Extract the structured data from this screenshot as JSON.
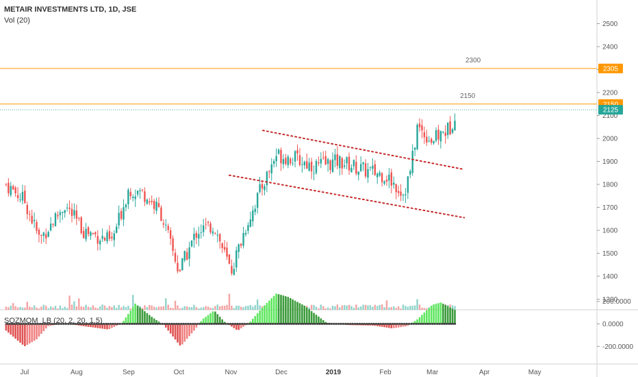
{
  "legend": {
    "title": "METAIR INVESTMENTS LTD, 1D, JSE",
    "volume": "Vol (20)",
    "indicator": "SQZMOM_LB (20, 2, 20, 1.5)"
  },
  "colors": {
    "up": "#26a69a",
    "down": "#ef5350",
    "level": "#ff9800",
    "last_price": "#26a69a",
    "trend": "#c62828",
    "mom_up_strong": "#5ee65e",
    "mom_up_weak": "#3a9a3a",
    "mom_down_strong": "#e05252",
    "mom_down_weak": "#f08080"
  },
  "chart_data": [
    {
      "type": "candlestick",
      "title": "METAIR INVESTMENTS LTD, 1D, JSE",
      "x_ticks": [
        "Jul",
        "Aug",
        "Sep",
        "Oct",
        "Nov",
        "Dec",
        "2019",
        "Feb",
        "Mar",
        "Apr",
        "May"
      ],
      "x_tick_bold": "2019",
      "y_ticks": [
        1300,
        1400,
        1500,
        1600,
        1700,
        1800,
        1900,
        2000,
        2100,
        2200,
        2300,
        2400,
        2500
      ],
      "ylim": [
        1200,
        2500
      ],
      "grid": true,
      "levels": [
        {
          "label": "2300",
          "badge": "2305",
          "value": 2305
        },
        {
          "label": "2150",
          "badge": "2150",
          "value": 2150
        }
      ],
      "last_price": {
        "badge": "2125",
        "value": 2125
      },
      "trend_channel": [
        {
          "from": [
            "2018-11-20",
            2035
          ],
          "to": [
            "2019-03-20",
            1865
          ]
        },
        {
          "from": [
            "2018-10-31",
            1840
          ],
          "to": [
            "2019-03-20",
            1655
          ]
        }
      ],
      "anchors": [
        [
          "2018-06-20",
          1800
        ],
        [
          "2018-07-01",
          1730
        ],
        [
          "2018-07-10",
          1560
        ],
        [
          "2018-07-25",
          1710
        ],
        [
          "2018-08-05",
          1600
        ],
        [
          "2018-08-22",
          1550
        ],
        [
          "2018-09-01",
          1780
        ],
        [
          "2018-09-10",
          1760
        ],
        [
          "2018-09-20",
          1680
        ],
        [
          "2018-10-01",
          1420
        ],
        [
          "2018-10-12",
          1600
        ],
        [
          "2018-10-22",
          1620
        ],
        [
          "2018-11-01",
          1420
        ],
        [
          "2018-11-10",
          1620
        ],
        [
          "2018-11-20",
          1800
        ],
        [
          "2018-11-28",
          1930
        ],
        [
          "2018-12-10",
          1910
        ],
        [
          "2018-12-20",
          1880
        ],
        [
          "2019-01-05",
          1900
        ],
        [
          "2019-01-20",
          1860
        ],
        [
          "2019-02-01",
          1840
        ],
        [
          "2019-02-12",
          1760
        ],
        [
          "2019-02-16",
          1860
        ],
        [
          "2019-02-20",
          2050
        ],
        [
          "2019-03-01",
          1990
        ],
        [
          "2019-03-12",
          2050
        ],
        [
          "2019-03-15",
          2125
        ]
      ]
    },
    {
      "type": "bar",
      "title": "Vol (20)",
      "note": "volume histogram overlaid at bottom of price pane; colored by candle direction"
    },
    {
      "type": "histogram",
      "title": "SQZMOM_LB (20, 2, 20, 1.5)",
      "y_ticks": [
        "200.0000",
        "0.0000",
        "-200.0000"
      ],
      "ylim": [
        -300,
        260
      ],
      "anchors": [
        [
          "2018-06-20",
          -60
        ],
        [
          "2018-07-01",
          -200
        ],
        [
          "2018-07-08",
          -140
        ],
        [
          "2018-07-15",
          -20
        ],
        [
          "2018-07-25",
          5
        ],
        [
          "2018-08-05",
          -20
        ],
        [
          "2018-08-20",
          -50
        ],
        [
          "2018-08-28",
          5
        ],
        [
          "2018-09-05",
          180
        ],
        [
          "2018-09-15",
          60
        ],
        [
          "2018-09-22",
          -10
        ],
        [
          "2018-10-02",
          -200
        ],
        [
          "2018-10-10",
          -60
        ],
        [
          "2018-10-15",
          40
        ],
        [
          "2018-10-22",
          120
        ],
        [
          "2018-10-28",
          20
        ],
        [
          "2018-11-05",
          -60
        ],
        [
          "2018-11-12",
          10
        ],
        [
          "2018-11-20",
          150
        ],
        [
          "2018-11-28",
          270
        ],
        [
          "2018-12-05",
          240
        ],
        [
          "2018-12-15",
          160
        ],
        [
          "2018-12-28",
          10
        ],
        [
          "2019-01-10",
          -10
        ],
        [
          "2019-01-25",
          -15
        ],
        [
          "2019-02-05",
          -40
        ],
        [
          "2019-02-14",
          -20
        ],
        [
          "2019-02-20",
          40
        ],
        [
          "2019-03-01",
          170
        ],
        [
          "2019-03-06",
          190
        ],
        [
          "2019-03-15",
          120
        ]
      ]
    }
  ]
}
